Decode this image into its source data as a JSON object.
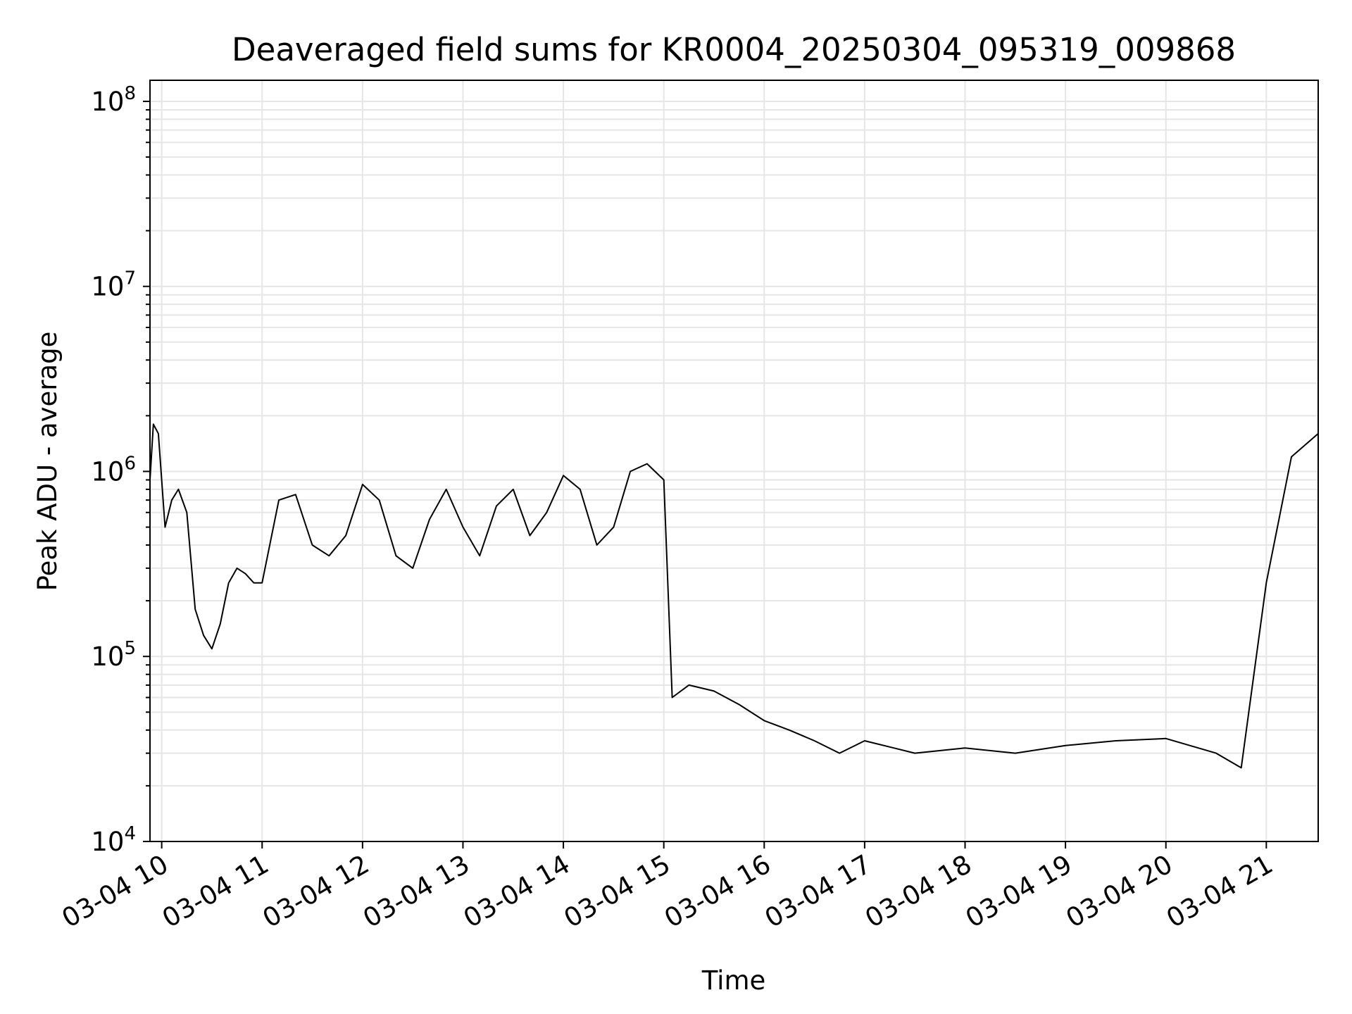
{
  "chart_data": {
    "type": "line",
    "title": "Deaveraged field sums for KR0004_20250304_095319_009868",
    "xlabel": "Time",
    "ylabel": "Peak ADU - average",
    "yscale": "log",
    "ylim": [
      10000,
      130000000
    ],
    "xlim": [
      "2025-03-04 09:53",
      "2025-03-04 21:31"
    ],
    "grid": true,
    "line_color": "#000000",
    "grid_color": "#e6e6e6",
    "x_tick_labels": [
      "03-04 10",
      "03-04 11",
      "03-04 12",
      "03-04 13",
      "03-04 14",
      "03-04 15",
      "03-04 16",
      "03-04 17",
      "03-04 18",
      "03-04 19",
      "03-04 20",
      "03-04 21"
    ],
    "y_ticks": [
      {
        "base": "10",
        "exp": "4"
      },
      {
        "base": "10",
        "exp": "5"
      },
      {
        "base": "10",
        "exp": "6"
      },
      {
        "base": "10",
        "exp": "7"
      },
      {
        "base": "10",
        "exp": "8"
      }
    ],
    "series": [
      {
        "x": [
          "2025-03-04 09:53",
          "2025-03-04 09:55",
          "2025-03-04 09:58",
          "2025-03-04 10:02",
          "2025-03-04 10:06",
          "2025-03-04 10:10",
          "2025-03-04 10:15",
          "2025-03-04 10:20",
          "2025-03-04 10:25",
          "2025-03-04 10:30",
          "2025-03-04 10:35",
          "2025-03-04 10:40",
          "2025-03-04 10:45",
          "2025-03-04 10:50",
          "2025-03-04 10:55",
          "2025-03-04 11:00",
          "2025-03-04 11:10",
          "2025-03-04 11:20",
          "2025-03-04 11:30",
          "2025-03-04 11:40",
          "2025-03-04 11:50",
          "2025-03-04 12:00",
          "2025-03-04 12:10",
          "2025-03-04 12:20",
          "2025-03-04 12:30",
          "2025-03-04 12:40",
          "2025-03-04 12:50",
          "2025-03-04 13:00",
          "2025-03-04 13:10",
          "2025-03-04 13:20",
          "2025-03-04 13:30",
          "2025-03-04 13:40",
          "2025-03-04 13:50",
          "2025-03-04 14:00",
          "2025-03-04 14:10",
          "2025-03-04 14:20",
          "2025-03-04 14:30",
          "2025-03-04 14:40",
          "2025-03-04 14:50",
          "2025-03-04 15:00",
          "2025-03-04 15:05",
          "2025-03-04 15:15",
          "2025-03-04 15:30",
          "2025-03-04 15:45",
          "2025-03-04 16:00",
          "2025-03-04 16:15",
          "2025-03-04 16:30",
          "2025-03-04 16:45",
          "2025-03-04 17:00",
          "2025-03-04 17:30",
          "2025-03-04 18:00",
          "2025-03-04 18:30",
          "2025-03-04 19:00",
          "2025-03-04 19:30",
          "2025-03-04 20:00",
          "2025-03-04 20:30",
          "2025-03-04 20:45",
          "2025-03-04 21:00",
          "2025-03-04 21:15",
          "2025-03-04 21:31"
        ],
        "y": [
          900000,
          1800000,
          1600000,
          500000,
          700000,
          800000,
          600000,
          180000,
          130000,
          110000,
          150000,
          250000,
          300000,
          280000,
          250000,
          250000,
          700000,
          750000,
          400000,
          350000,
          450000,
          850000,
          700000,
          350000,
          300000,
          550000,
          800000,
          500000,
          350000,
          650000,
          800000,
          450000,
          600000,
          950000,
          800000,
          400000,
          500000,
          1000000,
          1100000,
          900000,
          60000,
          70000,
          65000,
          55000,
          45000,
          40000,
          35000,
          30000,
          35000,
          30000,
          32000,
          30000,
          33000,
          35000,
          36000,
          30000,
          25000,
          250000,
          1200000,
          1600000
        ]
      }
    ]
  }
}
